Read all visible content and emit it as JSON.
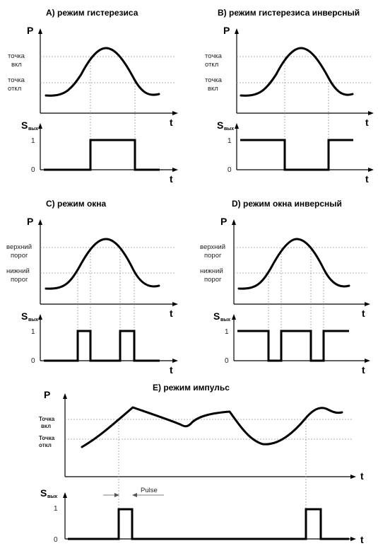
{
  "panels": {
    "a": {
      "title": "A) режим гистерезиса",
      "p_label": "P",
      "t_label": "t",
      "s_label": "S",
      "s_sub": "вых",
      "level_hi": [
        "точка",
        "вкл"
      ],
      "level_lo": [
        "точка",
        "откл"
      ],
      "one": "1",
      "zero": "0"
    },
    "b": {
      "title": "B) режим гистерезиса инверсный",
      "p_label": "P",
      "t_label": "t",
      "s_label": "S",
      "s_sub": "вых",
      "level_hi": [
        "точка",
        "откл"
      ],
      "level_lo": [
        "точка",
        "вкл"
      ],
      "one": "1",
      "zero": "0"
    },
    "c": {
      "title": "C) режим окна",
      "p_label": "P",
      "t_label": "t",
      "s_label": "S",
      "s_sub": "вых",
      "level_hi": [
        "верхний",
        "порог"
      ],
      "level_lo": [
        "нижний",
        "порог"
      ],
      "one": "1",
      "zero": "0"
    },
    "d": {
      "title": "D) режим окна инверсный",
      "p_label": "P",
      "t_label": "t",
      "s_label": "S",
      "s_sub": "вых",
      "level_hi": [
        "верхний",
        "порог"
      ],
      "level_lo": [
        "нижний",
        "порог"
      ],
      "one": "1",
      "zero": "0"
    },
    "e": {
      "title": "E) режим импульс",
      "p_label": "P",
      "t_label": "t",
      "s_label": "S",
      "s_sub": "вых",
      "level_hi": [
        "Точка",
        "вкл"
      ],
      "level_lo": [
        "Точка",
        "откл"
      ],
      "pulse_label": "Pulse",
      "one": "1",
      "zero": "0"
    }
  }
}
